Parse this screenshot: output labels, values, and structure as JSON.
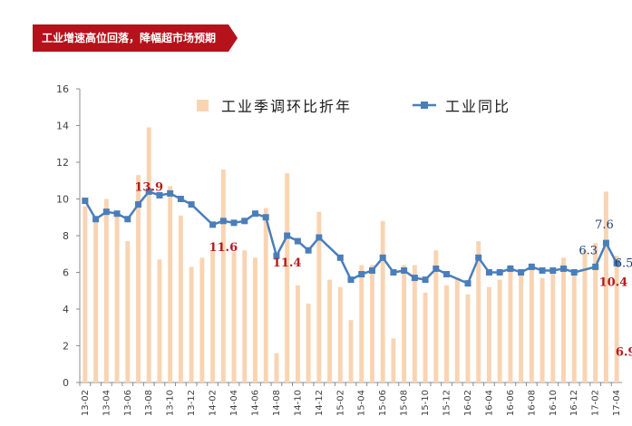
{
  "header": {
    "title": "工业增速高位回落，降幅超市场预期"
  },
  "colors": {
    "banner": "#b5121b",
    "bar": "#f9d4b2",
    "line": "#4a7ebb",
    "axis": "#8c8c8c",
    "red_label": "#b71c1c"
  },
  "chart_data": {
    "type": "bar+line",
    "categories": [
      "13-02",
      "13-03",
      "13-04",
      "13-05",
      "13-06",
      "13-07",
      "13-08",
      "13-09",
      "13-10",
      "13-11",
      "13-12",
      "14-01",
      "14-02",
      "14-03",
      "14-04",
      "14-05",
      "14-06",
      "14-07",
      "14-08",
      "14-09",
      "14-10",
      "14-11",
      "14-12",
      "15-01",
      "15-02",
      "15-03",
      "15-04",
      "15-05",
      "15-06",
      "15-07",
      "15-08",
      "15-09",
      "15-10",
      "15-11",
      "15-12",
      "16-01",
      "16-02",
      "16-03",
      "16-04",
      "16-05",
      "16-06",
      "16-07",
      "16-08",
      "16-09",
      "16-10",
      "16-11",
      "16-12",
      "17-01",
      "17-02",
      "17-03",
      "17-04"
    ],
    "x_tick_labels": [
      "13-02",
      "13-04",
      "13-06",
      "13-08",
      "13-10",
      "13-12",
      "14-02",
      "14-04",
      "14-06",
      "14-08",
      "14-10",
      "14-12",
      "15-02",
      "15-04",
      "15-06",
      "15-08",
      "15-10",
      "15-12",
      "16-02",
      "16-04",
      "16-06",
      "16-08",
      "16-10",
      "16-12",
      "17-02",
      "17-04"
    ],
    "series": [
      {
        "name": "工业季调环比折年",
        "type": "bar",
        "values": [
          9.6,
          8.8,
          10.0,
          9.3,
          7.7,
          11.3,
          13.9,
          6.7,
          10.7,
          9.1,
          6.3,
          6.8,
          7.2,
          11.6,
          7.1,
          7.2,
          6.8,
          9.5,
          1.6,
          11.4,
          5.3,
          4.3,
          9.3,
          5.6,
          5.2,
          3.4,
          6.4,
          6.4,
          8.8,
          2.4,
          6.4,
          6.4,
          4.9,
          7.2,
          5.3,
          5.7,
          4.8,
          7.7,
          5.2,
          5.6,
          6.4,
          6.1,
          6.5,
          5.7,
          6.2,
          6.8,
          6.0,
          7.2,
          7.6,
          10.4,
          6.9
        ]
      },
      {
        "name": "工业同比",
        "type": "line",
        "values": [
          9.9,
          8.9,
          9.3,
          9.2,
          8.9,
          9.7,
          10.4,
          10.2,
          10.3,
          10.0,
          9.7,
          null,
          8.6,
          8.8,
          8.7,
          8.8,
          9.2,
          9.0,
          6.9,
          8.0,
          7.7,
          7.2,
          7.9,
          null,
          6.8,
          5.6,
          5.9,
          6.1,
          6.8,
          6.0,
          6.1,
          5.7,
          5.6,
          6.2,
          5.9,
          null,
          5.4,
          6.8,
          6.0,
          6.0,
          6.2,
          6.0,
          6.3,
          6.1,
          6.1,
          6.2,
          6.0,
          null,
          6.3,
          7.6,
          6.5
        ]
      }
    ],
    "ylim": [
      0,
      16
    ],
    "yticks": [
      0,
      2,
      4,
      6,
      8,
      10,
      12,
      14,
      16
    ],
    "legend_position": "top",
    "annotations": [
      {
        "text": "13.9",
        "category": "13-08",
        "y": 13.9,
        "color": "red"
      },
      {
        "text": "11.6",
        "category": "14-03",
        "y": 11.6,
        "color": "red"
      },
      {
        "text": "11.4",
        "category": "14-09",
        "y": 11.4,
        "color": "red"
      },
      {
        "text": "6.3",
        "category": "17-02",
        "y": 6.3,
        "color": "blue"
      },
      {
        "text": "7.6",
        "category": "17-03",
        "y": 7.6,
        "color": "blue"
      },
      {
        "text": "6.5",
        "category": "17-04",
        "y": 6.5,
        "color": "blue"
      },
      {
        "text": "10.4",
        "category": "17-03",
        "y": 10.4,
        "color": "red"
      },
      {
        "text": "6.9",
        "category": "17-04",
        "y": 6.9,
        "color": "red"
      }
    ]
  }
}
